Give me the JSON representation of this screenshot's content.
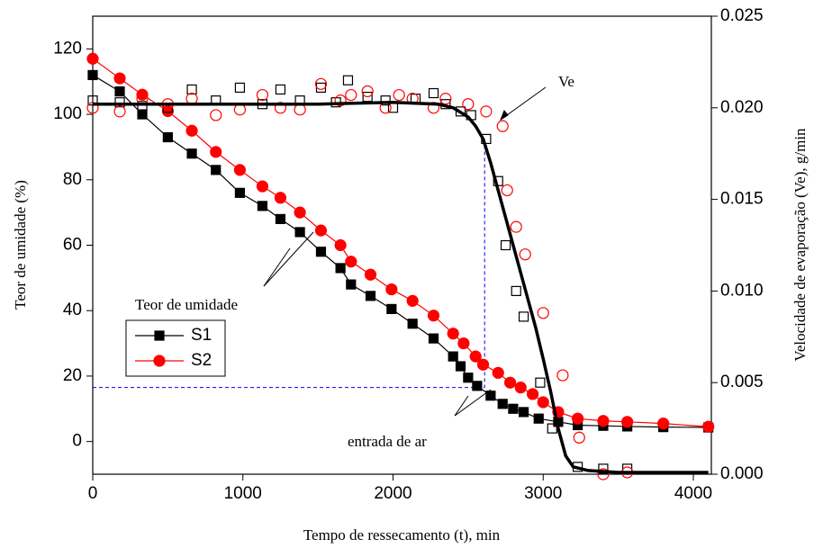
{
  "chart_data": {
    "type": "line",
    "xlabel": "Tempo de ressecamento (t), min",
    "ylabel": "Teor de umidade (%)",
    "y2label": "Velocidade de evaporação (Ve), g/min",
    "xlim": [
      0,
      4120
    ],
    "ylim": [
      -10,
      130
    ],
    "y2lim": [
      0,
      0.025
    ],
    "xticks": [
      0,
      1000,
      2000,
      3000,
      4000
    ],
    "yticks": [
      0,
      20,
      40,
      60,
      80,
      100,
      120
    ],
    "y2ticks": [
      {
        "value": 0,
        "label": "0.000"
      },
      0.005,
      {
        "value": 0.01,
        "label": "0.010"
      },
      0.015,
      {
        "value": 0.02,
        "label": "0.020"
      },
      0.025
    ],
    "legend": "lower left",
    "series": [
      {
        "name": "S1",
        "color": "#000000",
        "marker": "square",
        "filled": true,
        "axis": "y",
        "x": [
          0,
          180,
          330,
          500,
          660,
          820,
          980,
          1130,
          1250,
          1380,
          1520,
          1650,
          1720,
          1850,
          1990,
          2130,
          2270,
          2400,
          2450,
          2500,
          2560,
          2650,
          2730,
          2800,
          2870,
          2970,
          3100,
          3230,
          3400,
          3560,
          3800,
          4100
        ],
        "values": [
          112,
          107,
          100,
          93,
          88,
          83,
          76,
          72,
          68,
          64,
          58,
          53,
          48,
          44.5,
          40.5,
          36,
          31.5,
          26,
          23,
          19.5,
          17,
          14,
          11.5,
          10,
          9,
          7,
          6,
          5,
          4.8,
          4.6,
          4.4,
          4.3
        ]
      },
      {
        "name": "S2",
        "color": "#ff0000",
        "marker": "circle",
        "filled": true,
        "axis": "y",
        "x": [
          0,
          180,
          330,
          500,
          660,
          820,
          980,
          1130,
          1250,
          1380,
          1520,
          1650,
          1720,
          1850,
          1990,
          2130,
          2270,
          2400,
          2470,
          2550,
          2600,
          2700,
          2780,
          2850,
          2930,
          3000,
          3100,
          3230,
          3400,
          3560,
          3800,
          4100
        ],
        "values": [
          117,
          111,
          106,
          101,
          95,
          88.5,
          83,
          78,
          74.5,
          70,
          64.5,
          60,
          55,
          51,
          46.5,
          43,
          38.5,
          33,
          30,
          26,
          23.5,
          21,
          18,
          16.5,
          14.5,
          12,
          9,
          7,
          6.3,
          6,
          5.5,
          4.5
        ]
      },
      {
        "color": "#000000",
        "marker": "square",
        "filled": false,
        "axis": "y2",
        "x": [
          0,
          180,
          330,
          500,
          660,
          820,
          980,
          1130,
          1250,
          1380,
          1520,
          1620,
          1700,
          1830,
          1950,
          2000,
          2150,
          2270,
          2350,
          2450,
          2520,
          2620,
          2700,
          2750,
          2820,
          2870,
          2980,
          3060,
          3230,
          3400,
          3560
        ],
        "values": [
          0.0204,
          0.0203,
          0.0201,
          0.02,
          0.021,
          0.0204,
          0.0211,
          0.0202,
          0.021,
          0.0204,
          0.0211,
          0.0203,
          0.0215,
          0.0206,
          0.0204,
          0.02,
          0.0205,
          0.0208,
          0.0202,
          0.0198,
          0.0196,
          0.0183,
          0.016,
          0.0125,
          0.01,
          0.0086,
          0.005,
          0.0025,
          0.0004,
          0.0003,
          0.0003
        ]
      },
      {
        "color": "#ff0000",
        "marker": "circle",
        "filled": false,
        "axis": "y2",
        "x": [
          0,
          180,
          330,
          500,
          660,
          820,
          980,
          1130,
          1250,
          1380,
          1520,
          1650,
          1720,
          1830,
          1950,
          2040,
          2130,
          2270,
          2350,
          2500,
          2620,
          2730,
          2760,
          2820,
          2880,
          3000,
          3130,
          3240,
          3400,
          3560
        ],
        "values": [
          0.02,
          0.0198,
          0.0205,
          0.0202,
          0.0205,
          0.0196,
          0.0199,
          0.0207,
          0.02,
          0.0199,
          0.0213,
          0.0204,
          0.0207,
          0.0209,
          0.02,
          0.0207,
          0.0205,
          0.02,
          0.0205,
          0.0202,
          0.0198,
          0.019,
          0.0155,
          0.0135,
          0.012,
          0.0088,
          0.0054,
          0.002,
          0,
          0.0001
        ]
      },
      {
        "color": "#000000",
        "line_width": 3.5,
        "axis": "y2",
        "x": [
          0,
          500,
          1000,
          1500,
          2000,
          2300,
          2400,
          2500,
          2550,
          2600,
          2650,
          2700,
          2750,
          2800,
          2850,
          2900,
          2950,
          3000,
          3050,
          3100,
          3150,
          3200,
          3300,
          3500,
          4100
        ],
        "values": [
          0.0202,
          0.0202,
          0.0202,
          0.0202,
          0.0203,
          0.0202,
          0.02,
          0.0195,
          0.019,
          0.0183,
          0.017,
          0.0155,
          0.014,
          0.0125,
          0.011,
          0.0095,
          0.008,
          0.0063,
          0.0045,
          0.0025,
          0.001,
          0.0004,
          0.0002,
          0.0001,
          0.0001
        ]
      }
    ],
    "guides": {
      "x": 2610,
      "y": 16.5,
      "y2": 0.0183,
      "color": "#0000ff"
    },
    "annotations": [
      "Ve",
      "Teor de umidade",
      "entrada de ar"
    ]
  }
}
